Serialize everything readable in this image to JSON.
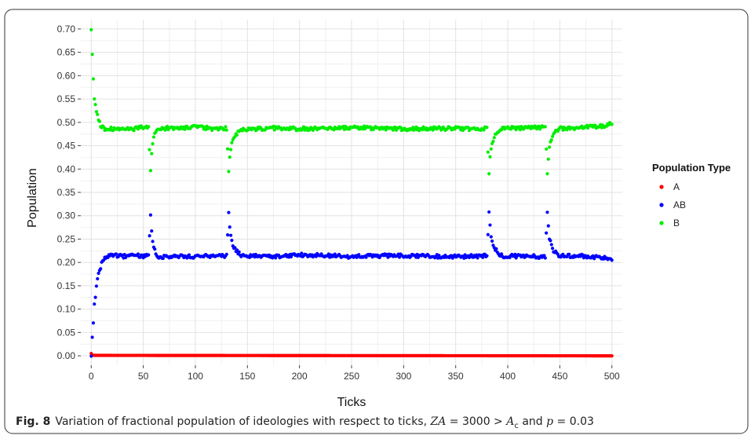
{
  "chart_data": {
    "type": "scatter",
    "xlabel": "Ticks",
    "ylabel": "Population",
    "xlim": [
      -10,
      510
    ],
    "ylim": [
      -0.02,
      0.72
    ],
    "x_ticks": [
      0,
      50,
      100,
      150,
      200,
      250,
      300,
      350,
      400,
      450,
      500
    ],
    "y_ticks": [
      0.0,
      0.05,
      0.1,
      0.15,
      0.2,
      0.25,
      0.3,
      0.35,
      0.4,
      0.45,
      0.5,
      0.55,
      0.6,
      0.65,
      0.7
    ],
    "x_tick_labels": [
      "0",
      "50",
      "100",
      "150",
      "200",
      "250",
      "300",
      "350",
      "400",
      "450",
      "500"
    ],
    "y_tick_labels": [
      "0.00",
      "0.05",
      "0.10",
      "0.15",
      "0.20",
      "0.25",
      "0.30",
      "0.35",
      "0.40",
      "0.45",
      "0.50",
      "0.55",
      "0.60",
      "0.65",
      "0.70"
    ],
    "grid": true,
    "legend": {
      "title": "Population Type",
      "position": "right"
    },
    "series": [
      {
        "name": "A",
        "color": "#ff0000",
        "points": [
          [
            0,
            0.005
          ],
          [
            1,
            0.002
          ],
          [
            2,
            0.001
          ],
          [
            500,
            0.0
          ]
        ]
      },
      {
        "name": "AB",
        "color": "#0000ff",
        "points": [
          [
            0,
            0.003
          ],
          [
            3,
            0.107
          ],
          [
            5,
            0.15
          ],
          [
            7,
            0.175
          ],
          [
            9,
            0.19
          ],
          [
            11,
            0.205
          ],
          [
            13,
            0.212
          ],
          [
            20,
            0.215
          ],
          [
            30,
            0.213
          ],
          [
            40,
            0.216
          ],
          [
            50,
            0.214
          ],
          [
            55,
            0.215
          ],
          [
            57,
            0.305
          ],
          [
            58,
            0.268
          ],
          [
            59,
            0.245
          ],
          [
            60,
            0.232
          ],
          [
            62,
            0.22
          ],
          [
            65,
            0.212
          ],
          [
            80,
            0.214
          ],
          [
            100,
            0.212
          ],
          [
            120,
            0.215
          ],
          [
            130,
            0.214
          ],
          [
            132,
            0.307
          ],
          [
            133,
            0.275
          ],
          [
            134,
            0.255
          ],
          [
            136,
            0.238
          ],
          [
            138,
            0.228
          ],
          [
            141,
            0.22
          ],
          [
            145,
            0.215
          ],
          [
            170,
            0.213
          ],
          [
            200,
            0.216
          ],
          [
            250,
            0.213
          ],
          [
            300,
            0.215
          ],
          [
            350,
            0.212
          ],
          [
            375,
            0.214
          ],
          [
            380,
            0.214
          ],
          [
            382,
            0.31
          ],
          [
            383,
            0.278
          ],
          [
            384,
            0.257
          ],
          [
            386,
            0.24
          ],
          [
            388,
            0.228
          ],
          [
            391,
            0.22
          ],
          [
            395,
            0.214
          ],
          [
            420,
            0.213
          ],
          [
            436,
            0.212
          ],
          [
            438,
            0.308
          ],
          [
            439,
            0.275
          ],
          [
            440,
            0.252
          ],
          [
            442,
            0.236
          ],
          [
            444,
            0.226
          ],
          [
            447,
            0.218
          ],
          [
            450,
            0.214
          ],
          [
            470,
            0.214
          ],
          [
            490,
            0.211
          ],
          [
            500,
            0.205
          ]
        ]
      },
      {
        "name": "B",
        "color": "#00ee00",
        "points": [
          [
            0,
            0.695
          ],
          [
            2,
            0.595
          ],
          [
            3,
            0.552
          ],
          [
            5,
            0.525
          ],
          [
            7,
            0.505
          ],
          [
            9,
            0.493
          ],
          [
            12,
            0.487
          ],
          [
            20,
            0.486
          ],
          [
            30,
            0.488
          ],
          [
            40,
            0.486
          ],
          [
            50,
            0.489
          ],
          [
            55,
            0.487
          ],
          [
            57,
            0.396
          ],
          [
            58,
            0.435
          ],
          [
            59,
            0.455
          ],
          [
            60,
            0.47
          ],
          [
            62,
            0.48
          ],
          [
            65,
            0.487
          ],
          [
            80,
            0.488
          ],
          [
            100,
            0.49
          ],
          [
            120,
            0.486
          ],
          [
            130,
            0.487
          ],
          [
            132,
            0.394
          ],
          [
            133,
            0.425
          ],
          [
            134,
            0.445
          ],
          [
            136,
            0.46
          ],
          [
            138,
            0.47
          ],
          [
            141,
            0.478
          ],
          [
            145,
            0.484
          ],
          [
            170,
            0.488
          ],
          [
            200,
            0.486
          ],
          [
            250,
            0.489
          ],
          [
            300,
            0.486
          ],
          [
            350,
            0.487
          ],
          [
            375,
            0.486
          ],
          [
            380,
            0.488
          ],
          [
            382,
            0.392
          ],
          [
            383,
            0.425
          ],
          [
            384,
            0.445
          ],
          [
            386,
            0.462
          ],
          [
            388,
            0.472
          ],
          [
            391,
            0.48
          ],
          [
            395,
            0.487
          ],
          [
            420,
            0.488
          ],
          [
            436,
            0.49
          ],
          [
            438,
            0.394
          ],
          [
            439,
            0.425
          ],
          [
            440,
            0.448
          ],
          [
            442,
            0.464
          ],
          [
            444,
            0.474
          ],
          [
            447,
            0.482
          ],
          [
            450,
            0.487
          ],
          [
            470,
            0.489
          ],
          [
            490,
            0.492
          ],
          [
            500,
            0.497
          ]
        ]
      }
    ]
  },
  "caption": {
    "label": "Fig. 8",
    "text": "Variation of fractional population of ideologies with respect to ticks,",
    "za": "ZA",
    "eq1": "= 3000 >",
    "ac_base": "A",
    "ac_sub": "c",
    "and_text": "and",
    "p": "p",
    "eq2": "= 0.03"
  }
}
